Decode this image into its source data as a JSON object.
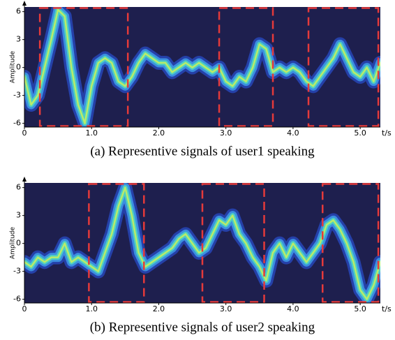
{
  "chart_data": [
    {
      "type": "line",
      "caption": "(a) Representive signals of user1 speaking",
      "xlabel": "t/s",
      "ylabel": "Amplitude",
      "x": [
        0,
        0.1,
        0.2,
        0.3,
        0.4,
        0.5,
        0.6,
        0.7,
        0.8,
        0.9,
        1.0,
        1.1,
        1.2,
        1.3,
        1.4,
        1.5,
        1.6,
        1.7,
        1.8,
        1.9,
        2.0,
        2.1,
        2.2,
        2.3,
        2.4,
        2.5,
        2.6,
        2.7,
        2.8,
        2.9,
        3.0,
        3.1,
        3.2,
        3.3,
        3.4,
        3.5,
        3.6,
        3.7,
        3.8,
        3.9,
        4.0,
        4.1,
        4.2,
        4.3,
        4.4,
        4.5,
        4.6,
        4.7,
        4.8,
        4.9,
        5.0,
        5.1,
        5.2,
        5.3
      ],
      "values": [
        -1,
        -4,
        -3,
        0,
        3,
        6.2,
        5.5,
        0,
        -4,
        -6,
        -2,
        0.5,
        1,
        0.5,
        -1.5,
        -2,
        -1,
        0.5,
        1.5,
        1,
        0.5,
        0.5,
        -0.5,
        0,
        0.5,
        0,
        0.5,
        0,
        -0.5,
        0,
        -1.5,
        -2,
        -1,
        -1.5,
        0,
        2.5,
        2,
        -0.5,
        0,
        -0.5,
        0,
        -0.5,
        -1.5,
        -2,
        -1,
        0,
        1,
        2.5,
        1,
        -0.5,
        -1,
        0,
        -1.5,
        0.5
      ],
      "band_colors": [
        "#2540a8",
        "#3b8fe0",
        "#4fd0c0",
        "#b8ec6a"
      ],
      "background": "#1e1f4e",
      "highlight_regions": [
        [
          0.23,
          1.54
        ],
        [
          2.9,
          3.7
        ],
        [
          4.23,
          5.27
        ]
      ],
      "highlight_color": "#e53a3a",
      "xlim": [
        0,
        5.3
      ],
      "ylim": [
        -6.4,
        6.5
      ],
      "xticks": [
        0,
        {
          "value": 1,
          "label": "1.0"
        },
        {
          "value": 2,
          "label": "2.0"
        },
        {
          "value": 3,
          "label": "3.0"
        },
        {
          "value": 4,
          "label": "4.0"
        },
        {
          "value": 5,
          "label": "5.0"
        }
      ],
      "yticks": [
        6,
        3,
        0,
        -3,
        -6
      ]
    },
    {
      "type": "line",
      "caption": "(b) Representive signals of user2 speaking",
      "xlabel": "t/s",
      "ylabel": "Amplitude",
      "x": [
        0,
        0.1,
        0.2,
        0.3,
        0.4,
        0.5,
        0.6,
        0.7,
        0.8,
        0.9,
        1.0,
        1.1,
        1.2,
        1.3,
        1.4,
        1.5,
        1.6,
        1.7,
        1.8,
        1.9,
        2.0,
        2.1,
        2.2,
        2.3,
        2.4,
        2.5,
        2.6,
        2.7,
        2.8,
        2.9,
        3.0,
        3.1,
        3.2,
        3.3,
        3.4,
        3.5,
        3.6,
        3.7,
        3.8,
        3.9,
        4.0,
        4.1,
        4.2,
        4.3,
        4.4,
        4.5,
        4.6,
        4.7,
        4.8,
        4.9,
        5.0,
        5.1,
        5.2,
        5.3
      ],
      "values": [
        -2,
        -2.5,
        -1.5,
        -2,
        -1.5,
        -1.5,
        0,
        -2,
        -1.5,
        -2,
        -2.5,
        -3,
        -1,
        1,
        4,
        6,
        3,
        -1,
        -2.5,
        -2,
        -1.5,
        -1,
        -0.5,
        0.5,
        1,
        0,
        -1,
        -0.5,
        1,
        2.5,
        2,
        3,
        1,
        0,
        -1.5,
        -2.5,
        -4,
        -1,
        0,
        -1.5,
        0,
        -1,
        -2,
        -1,
        0,
        2,
        2.5,
        1.5,
        0,
        -2,
        -5,
        -6,
        -4.5,
        -2
      ],
      "band_colors": [
        "#2540a8",
        "#3b8fe0",
        "#4fd0c0",
        "#b8ec6a"
      ],
      "background": "#1e1f4e",
      "highlight_regions": [
        [
          0.96,
          1.78
        ],
        [
          2.65,
          3.57
        ],
        [
          4.44,
          5.27
        ]
      ],
      "highlight_color": "#e53a3a",
      "xlim": [
        0,
        5.3
      ],
      "ylim": [
        -6.4,
        6.5
      ],
      "xticks": [
        0,
        {
          "value": 1,
          "label": "1.0"
        },
        {
          "value": 2,
          "label": "2.0"
        },
        {
          "value": 3,
          "label": "3.0"
        },
        {
          "value": 4,
          "label": "4.0"
        },
        {
          "value": 5,
          "label": "5.0"
        }
      ],
      "yticks": [
        6,
        3,
        0,
        -3,
        -6
      ]
    }
  ]
}
